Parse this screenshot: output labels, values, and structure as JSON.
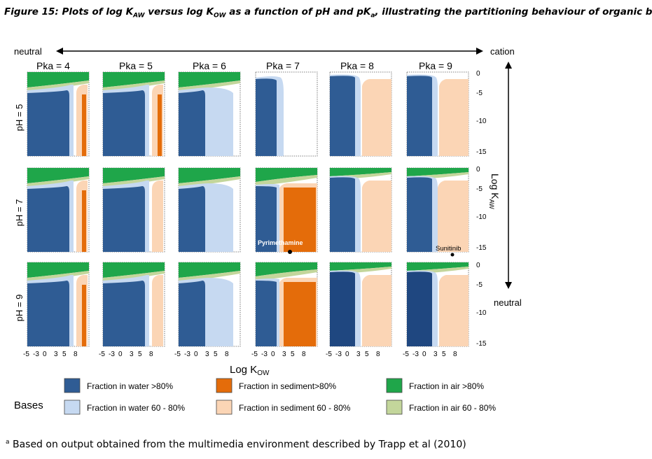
{
  "caption": {
    "prefix": "Figure 15: Plots of log K",
    "aw_sub": "AW",
    "mid1": " versus log K",
    "ow_sub": "OW",
    "mid2": " as a function of pH and pK",
    "a_sub": "a",
    "suffix": ", illustrating the partitioning behaviour of organic bases"
  },
  "axis_arrows": {
    "left": "neutral",
    "right": "cation",
    "bottom": "neutral"
  },
  "pka_labels": [
    "Pka = 4",
    "Pka = 5",
    "Pka = 6",
    "Pka = 7",
    "Pka = 8",
    "Pka = 9"
  ],
  "ph_labels": [
    "pH = 5",
    "pH = 7",
    "pH = 9"
  ],
  "x_ticks": [
    "-5",
    "-3",
    "0",
    "3",
    "5",
    "8"
  ],
  "y_ticks": [
    "0",
    "-5",
    "-10",
    "-15"
  ],
  "x_axis_label": "Log K",
  "x_axis_sub": "OW",
  "y_axis_label": "Log K",
  "y_axis_sub": "AW",
  "annotations": {
    "pyrimethamine": "Pyrimethamine",
    "sunitinib": "Sunitinib"
  },
  "legend": {
    "title": "Bases",
    "items": [
      {
        "label": "Fraction in water >80%",
        "color": "#2f5c94"
      },
      {
        "label": "Fraction in sediment>80%",
        "color": "#e46c0a"
      },
      {
        "label": "Fraction in air >80%",
        "color": "#1fa64a"
      },
      {
        "label": "Fraction in water 60 - 80%",
        "color": "#c6d9f1"
      },
      {
        "label": "Fraction in sediment 60 - 80%",
        "color": "#fbd5b5"
      },
      {
        "label": "Fraction in air 60 - 80%",
        "color": "#c3d69b"
      }
    ]
  },
  "colors": {
    "water_high": "#2f5c94",
    "water_high_dark": "#1f4780",
    "water_mid": "#c6d9f1",
    "sediment_high": "#e46c0a",
    "sediment_mid": "#fbd5b5",
    "air_high": "#1fa64a",
    "air_mid": "#c3d69b"
  },
  "footnote": {
    "marker": "a",
    "text": " Based on output obtained from the multimedia environment described by Trapp et al (2010)"
  }
}
